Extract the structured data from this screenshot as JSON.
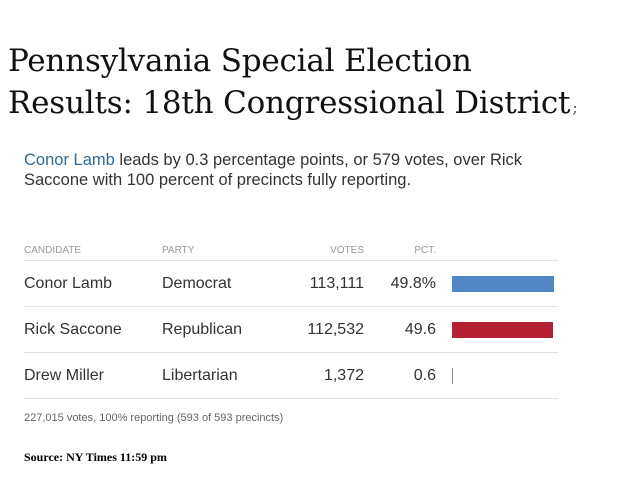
{
  "headline": {
    "line1": "Pennsylvania Special Election",
    "line2": "Results: 18th Congressional District",
    "trailing_mark": ";"
  },
  "summary": {
    "leader_name": "Conor Lamb",
    "text": "leads by 0.3 percentage points, or 579 votes, over Rick Saccone with 100 percent of precincts fully reporting."
  },
  "table": {
    "headers": {
      "candidate": "CANDIDATE",
      "party": "PARTY",
      "votes": "VOTES",
      "pct": "PCT."
    },
    "rows": [
      {
        "candidate": "Conor Lamb",
        "party": "Democrat",
        "votes": "113,111",
        "pct": "49.8%",
        "share": 0.498,
        "color": "#5287c6"
      },
      {
        "candidate": "Rick Saccone",
        "party": "Republican",
        "votes": "112,532",
        "pct": "49.6",
        "share": 0.496,
        "color": "#b52033"
      },
      {
        "candidate": "Drew Miller",
        "party": "Libertarian",
        "votes": "1,372",
        "pct": "0.6",
        "share": 0.006,
        "color": "#888888"
      }
    ]
  },
  "totals": "227,015 votes, 100% reporting (593 of 593 precincts)",
  "source": "Source: NY Times 11:59 pm"
}
